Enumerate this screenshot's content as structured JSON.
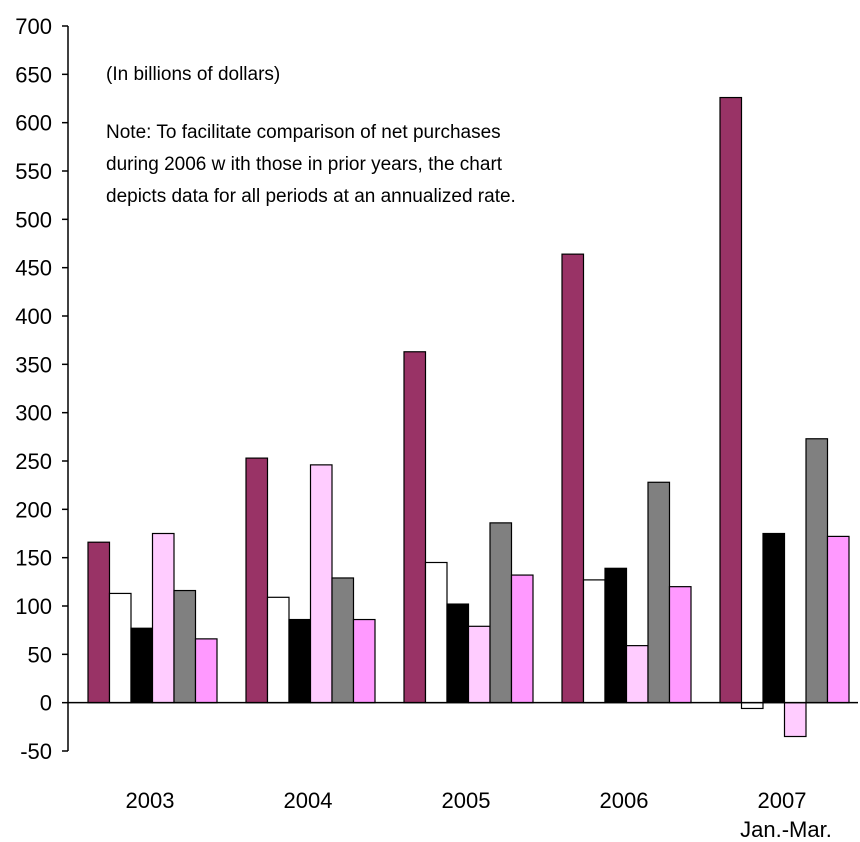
{
  "chart_data": {
    "type": "bar",
    "categories": [
      "2003",
      "2004",
      "2005",
      "2006",
      "2007"
    ],
    "category_sublabels": [
      "",
      "",
      "",
      "",
      "Jan.-Mar."
    ],
    "units_note": "(In billions of dollars)",
    "note_lines": [
      "Note: To facilitate comparison of net purchases",
      "during 2006 w ith those in prior years, the chart",
      "depicts data for all periods at an annualized rate."
    ],
    "ylim": [
      -50,
      700
    ],
    "yticks": [
      700,
      650,
      600,
      550,
      500,
      450,
      400,
      350,
      300,
      250,
      200,
      150,
      100,
      50,
      0,
      -50
    ],
    "grid": false,
    "legend": "none",
    "series": [
      {
        "color": "#993366",
        "values": [
          166,
          253,
          363,
          464,
          626
        ]
      },
      {
        "color": "#ffffff",
        "values": [
          113,
          109,
          145,
          127,
          -6
        ]
      },
      {
        "color": "#000000",
        "values": [
          77,
          86,
          102,
          139,
          175
        ]
      },
      {
        "color": "#ffccff",
        "values": [
          175,
          246,
          79,
          59,
          -35
        ]
      },
      {
        "color": "#808080",
        "values": [
          116,
          129,
          186,
          228,
          273
        ]
      },
      {
        "color": "#ff99ff",
        "values": [
          66,
          86,
          132,
          120,
          172
        ]
      }
    ]
  }
}
